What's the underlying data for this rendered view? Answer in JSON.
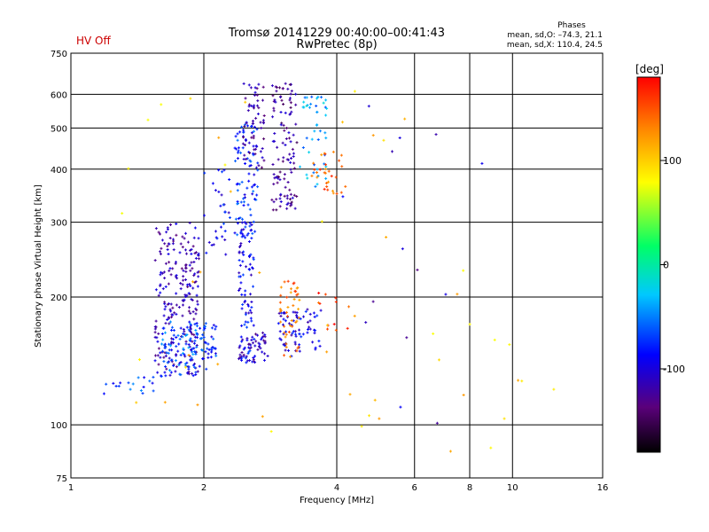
{
  "header": {
    "title_line1": "Tromsø 20141229 00:40:00–00:41:43",
    "title_line2": "RwPretec (8p)",
    "status": "HV Off",
    "phases_heading": "Phases",
    "phases_line1": "mean, sd,O: –74.3, 21.1",
    "phases_line2": "mean, sd,X: 110.4, 24.5"
  },
  "colors": {
    "status": "#cc0000",
    "grid": "#000000",
    "axis": "#000000"
  },
  "chart_data": {
    "type": "scatter",
    "xlabel": "Frequency [MHz]",
    "ylabel": "Stationary phase Virtual Height [km]",
    "xscale": "log",
    "yscale": "log",
    "xlim": [
      1,
      16
    ],
    "ylim": [
      75,
      750
    ],
    "xticks": [
      1,
      2,
      4,
      6,
      8,
      10,
      16
    ],
    "xtick_labels": [
      "1",
      "2",
      "4",
      "6",
      "8",
      "10",
      "16"
    ],
    "yticks": [
      75,
      100,
      200,
      300,
      400,
      500,
      600,
      750
    ],
    "ytick_labels": [
      "75",
      "100",
      "200",
      "300",
      "400",
      "500",
      "600",
      "750"
    ],
    "grid": true,
    "colorbar": {
      "label": "[deg]",
      "min": -180,
      "max": 180,
      "ticks": [
        100,
        0,
        -100
      ],
      "tick_labels": [
        "100",
        "0",
        "-100"
      ],
      "colormap": [
        "#000000",
        "#5a007a",
        "#0000ff",
        "#00c8ff",
        "#00ff66",
        "#ffff00",
        "#ff8800",
        "#ff0000"
      ]
    },
    "clusters": [
      {
        "f": [
          1.55,
          1.95
        ],
        "h": [
          130,
          300
        ],
        "phase": -115,
        "n": 230
      },
      {
        "f": [
          1.6,
          1.95
        ],
        "h": [
          130,
          175
        ],
        "phase": -60,
        "n": 70
      },
      {
        "f": [
          1.15,
          1.55
        ],
        "h": [
          118,
          130
        ],
        "phase": -70,
        "n": 18
      },
      {
        "f": [
          1.85,
          2.15
        ],
        "h": [
          135,
          175
        ],
        "phase": -75,
        "n": 60
      },
      {
        "f": [
          2.4,
          2.6
        ],
        "h": [
          140,
          300
        ],
        "phase": -90,
        "n": 90
      },
      {
        "f": [
          2.35,
          2.65
        ],
        "h": [
          280,
          520
        ],
        "phase": -75,
        "n": 90
      },
      {
        "f": [
          2.45,
          2.75
        ],
        "h": [
          400,
          640
        ],
        "phase": -120,
        "n": 60
      },
      {
        "f": [
          2.4,
          2.8
        ],
        "h": [
          140,
          165
        ],
        "phase": -110,
        "n": 45
      },
      {
        "f": [
          2.85,
          3.25
        ],
        "h": [
          320,
          640
        ],
        "phase": -125,
        "n": 110
      },
      {
        "f": [
          2.95,
          3.3
        ],
        "h": [
          145,
          185
        ],
        "phase": -100,
        "n": 50
      },
      {
        "f": [
          2.95,
          3.3
        ],
        "h": [
          140,
          220
        ],
        "phase": 140,
        "n": 45
      },
      {
        "f": [
          3.3,
          3.7
        ],
        "h": [
          150,
          190
        ],
        "phase": -95,
        "n": 25
      },
      {
        "f": [
          3.3,
          3.8
        ],
        "h": [
          360,
          600
        ],
        "phase": -40,
        "n": 45
      },
      {
        "f": [
          3.5,
          4.2
        ],
        "h": [
          350,
          440
        ],
        "phase": 145,
        "n": 30
      },
      {
        "f": [
          3.5,
          4.5
        ],
        "h": [
          165,
          210
        ],
        "phase": 160,
        "n": 12
      },
      {
        "f": [
          2.0,
          2.3
        ],
        "h": [
          240,
          410
        ],
        "phase": -90,
        "n": 30
      },
      {
        "f": [
          1.3,
          12.5
        ],
        "h": [
          80,
          640
        ],
        "phase": 100,
        "n": 50
      },
      {
        "f": [
          4.0,
          9.5
        ],
        "h": [
          100,
          600
        ],
        "phase": -110,
        "n": 14
      }
    ]
  }
}
